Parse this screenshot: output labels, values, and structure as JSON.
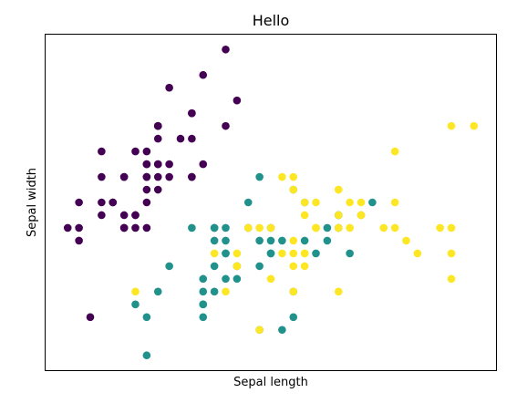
{
  "chart_data": {
    "type": "scatter",
    "title": "Hello",
    "xlabel": "Sepal length",
    "ylabel": "Sepal width",
    "xlim": [
      4.1,
      8.1
    ],
    "ylim": [
      1.88,
      4.52
    ],
    "ticks_visible": false,
    "grid": false,
    "legend": "none",
    "colors": {
      "class_0": "#440154",
      "class_1": "#21918c",
      "class_2": "#fde725"
    },
    "series": [
      {
        "class": 0,
        "points": [
          [
            5.1,
            3.5
          ],
          [
            4.9,
            3.0
          ],
          [
            4.7,
            3.2
          ],
          [
            4.6,
            3.1
          ],
          [
            5.0,
            3.6
          ],
          [
            5.4,
            3.9
          ],
          [
            4.6,
            3.4
          ],
          [
            5.0,
            3.4
          ],
          [
            4.4,
            2.9
          ],
          [
            4.9,
            3.1
          ],
          [
            5.4,
            3.7
          ],
          [
            4.8,
            3.4
          ],
          [
            4.8,
            3.0
          ],
          [
            4.3,
            3.0
          ],
          [
            5.8,
            4.0
          ],
          [
            5.7,
            4.4
          ],
          [
            5.4,
            3.9
          ],
          [
            5.1,
            3.5
          ],
          [
            5.7,
            3.8
          ],
          [
            5.1,
            3.8
          ],
          [
            5.4,
            3.4
          ],
          [
            5.1,
            3.7
          ],
          [
            4.6,
            3.6
          ],
          [
            5.1,
            3.3
          ],
          [
            4.8,
            3.4
          ],
          [
            5.0,
            3.0
          ],
          [
            5.0,
            3.4
          ],
          [
            5.2,
            3.5
          ],
          [
            5.2,
            3.4
          ],
          [
            4.7,
            3.2
          ],
          [
            4.8,
            3.1
          ],
          [
            5.4,
            3.4
          ],
          [
            5.2,
            4.1
          ],
          [
            5.5,
            4.2
          ],
          [
            4.9,
            3.1
          ],
          [
            5.0,
            3.2
          ],
          [
            5.5,
            3.5
          ],
          [
            4.9,
            3.6
          ],
          [
            4.4,
            3.0
          ],
          [
            5.1,
            3.4
          ],
          [
            5.0,
            3.5
          ],
          [
            4.5,
            2.3
          ],
          [
            4.4,
            3.2
          ],
          [
            5.0,
            3.5
          ],
          [
            5.1,
            3.8
          ],
          [
            4.8,
            3.0
          ],
          [
            5.1,
            3.8
          ],
          [
            4.6,
            3.2
          ],
          [
            5.3,
            3.7
          ],
          [
            5.0,
            3.3
          ]
        ]
      },
      {
        "class": 1,
        "points": [
          [
            7.0,
            3.2
          ],
          [
            6.4,
            3.2
          ],
          [
            6.9,
            3.1
          ],
          [
            5.5,
            2.3
          ],
          [
            6.5,
            2.8
          ],
          [
            5.7,
            2.8
          ],
          [
            6.3,
            3.3
          ],
          [
            4.9,
            2.4
          ],
          [
            6.6,
            2.9
          ],
          [
            5.2,
            2.7
          ],
          [
            5.0,
            2.0
          ],
          [
            5.9,
            3.0
          ],
          [
            6.0,
            2.2
          ],
          [
            6.1,
            2.9
          ],
          [
            5.6,
            2.9
          ],
          [
            6.7,
            3.1
          ],
          [
            5.6,
            3.0
          ],
          [
            5.8,
            2.7
          ],
          [
            6.2,
            2.2
          ],
          [
            5.6,
            2.5
          ],
          [
            5.9,
            3.2
          ],
          [
            6.1,
            2.8
          ],
          [
            6.3,
            2.5
          ],
          [
            6.1,
            2.8
          ],
          [
            6.4,
            2.9
          ],
          [
            6.6,
            3.0
          ],
          [
            6.8,
            2.8
          ],
          [
            6.7,
            3.0
          ],
          [
            6.0,
            2.9
          ],
          [
            5.7,
            2.6
          ],
          [
            5.5,
            2.4
          ],
          [
            5.5,
            2.4
          ],
          [
            5.8,
            2.7
          ],
          [
            6.0,
            2.7
          ],
          [
            5.4,
            3.0
          ],
          [
            6.0,
            3.4
          ],
          [
            6.7,
            3.1
          ],
          [
            6.3,
            2.3
          ],
          [
            5.6,
            3.0
          ],
          [
            5.5,
            2.5
          ],
          [
            5.5,
            2.6
          ],
          [
            6.1,
            3.0
          ],
          [
            5.8,
            2.6
          ],
          [
            5.0,
            2.3
          ],
          [
            5.6,
            2.7
          ],
          [
            5.7,
            3.0
          ],
          [
            5.7,
            2.9
          ],
          [
            6.2,
            2.9
          ],
          [
            5.1,
            2.5
          ],
          [
            5.7,
            2.8
          ]
        ]
      },
      {
        "class": 2,
        "points": [
          [
            6.3,
            3.3
          ],
          [
            5.8,
            2.7
          ],
          [
            7.1,
            3.0
          ],
          [
            6.3,
            2.9
          ],
          [
            6.5,
            3.0
          ],
          [
            7.6,
            3.0
          ],
          [
            4.9,
            2.5
          ],
          [
            7.3,
            2.9
          ],
          [
            6.7,
            2.5
          ],
          [
            7.2,
            3.6
          ],
          [
            6.5,
            3.2
          ],
          [
            6.4,
            2.7
          ],
          [
            6.8,
            3.0
          ],
          [
            5.7,
            2.5
          ],
          [
            5.8,
            2.8
          ],
          [
            6.4,
            3.2
          ],
          [
            6.5,
            3.0
          ],
          [
            7.7,
            3.8
          ],
          [
            7.7,
            2.6
          ],
          [
            6.0,
            2.2
          ],
          [
            6.9,
            3.2
          ],
          [
            5.6,
            2.8
          ],
          [
            7.7,
            2.8
          ],
          [
            6.3,
            2.7
          ],
          [
            6.7,
            3.3
          ],
          [
            7.2,
            3.2
          ],
          [
            6.2,
            2.8
          ],
          [
            6.1,
            3.0
          ],
          [
            6.4,
            2.8
          ],
          [
            7.2,
            3.0
          ],
          [
            7.4,
            2.8
          ],
          [
            7.9,
            3.8
          ],
          [
            6.4,
            2.8
          ],
          [
            6.3,
            2.8
          ],
          [
            6.1,
            2.6
          ],
          [
            7.7,
            3.0
          ],
          [
            6.3,
            3.4
          ],
          [
            6.4,
            3.1
          ],
          [
            6.0,
            3.0
          ],
          [
            6.9,
            3.1
          ],
          [
            6.7,
            3.1
          ],
          [
            6.9,
            3.1
          ],
          [
            5.8,
            2.7
          ],
          [
            6.8,
            3.2
          ],
          [
            6.7,
            3.3
          ],
          [
            6.7,
            3.0
          ],
          [
            6.3,
            2.5
          ],
          [
            6.5,
            3.0
          ],
          [
            6.2,
            3.4
          ],
          [
            5.9,
            3.0
          ]
        ]
      }
    ]
  }
}
